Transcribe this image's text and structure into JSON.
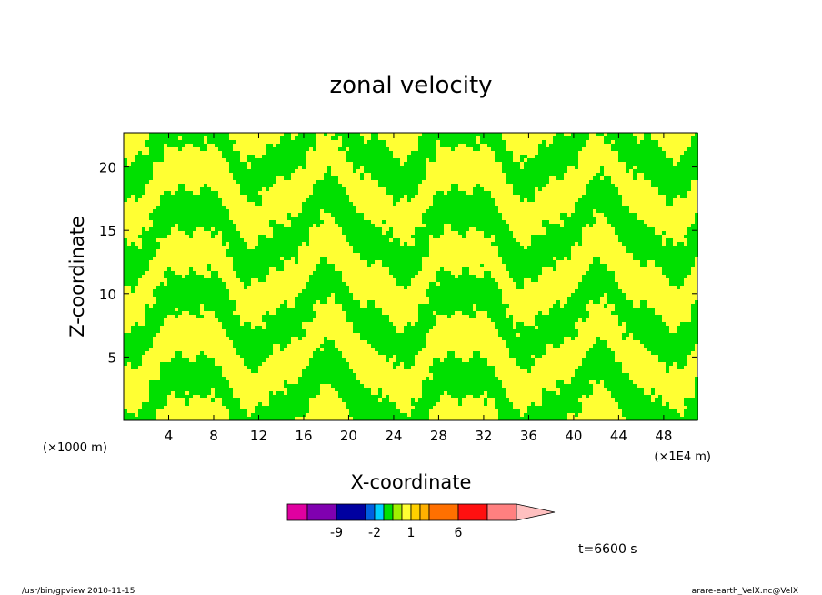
{
  "chart_data": {
    "type": "heatmap",
    "title": "zonal velocity",
    "xlabel": "X-coordinate",
    "ylabel": "Z-coordinate",
    "x_unit_left": "(×1000 m)",
    "x_unit_right": "(×1E4 m)",
    "xlim": [
      0,
      51
    ],
    "ylim": [
      0,
      22.7
    ],
    "x_ticks": [
      4,
      8,
      12,
      16,
      20,
      24,
      28,
      32,
      36,
      40,
      44,
      48
    ],
    "y_ticks": [
      5,
      10,
      15,
      20
    ],
    "fill_colors": {
      "low": "#00e000",
      "high": "#ffff33"
    },
    "colorbar": {
      "colors": [
        "#e000a0",
        "#8000b0",
        "#0000a0",
        "#0060e0",
        "#00d0ff",
        "#00e000",
        "#a0f000",
        "#ffff33",
        "#ffd000",
        "#ffb000",
        "#ff7000",
        "#ff1010",
        "#ff8080",
        "#ffc0c0"
      ],
      "labels": [
        "-9",
        "-2",
        "1",
        "6"
      ]
    },
    "annotation": "t=6600 s"
  },
  "footer": {
    "left": "/usr/bin/gpview   2010-11-15",
    "right": "arare-earth_VelX.nc@VelX"
  }
}
